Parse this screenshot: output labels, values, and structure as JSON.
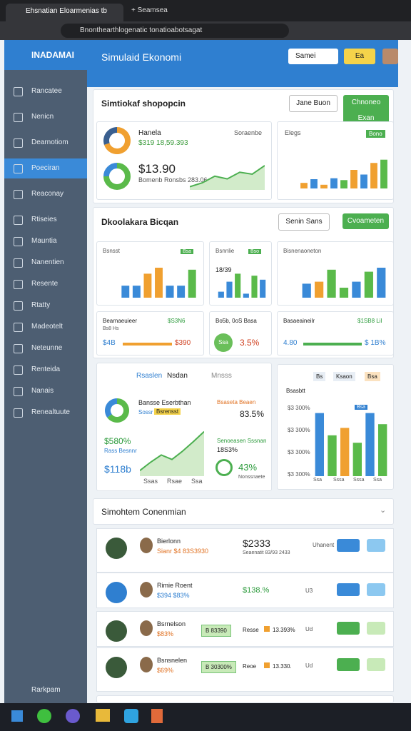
{
  "browser": {
    "tab_title": "Ehsnatian Eloarmenias tb",
    "new_tab": "Seamsea",
    "url": "Bnonthearthlogenatic tonatioabotsagat"
  },
  "sidebar": {
    "brand": "INADAMAI",
    "items": [
      "Rancatee",
      "Nenicn",
      "Dearnotiom",
      "Poeciran",
      "Reaconay",
      "Rtiseies",
      "Mauntia",
      "Nanentien",
      "Resente",
      "Rtatty",
      "Madeotelt",
      "Neteunne",
      "Renteida",
      "Nanais",
      "Renealtuute"
    ],
    "footer": "Rarkpam"
  },
  "header": {
    "title": "Simulaid Ekonomi",
    "select": "Samei",
    "button": "Ea"
  },
  "section1": {
    "title": "Simtiokaf shopopcin",
    "button1": "Jane Buon",
    "button2": "Chnoneo Exan",
    "card1": {
      "label": "Hanela",
      "sub": "Soraenbe",
      "value": "$319 18,59.393",
      "big": "$13.90",
      "note": "Bomenb Ronsbs 283.06",
      "donut": {
        "values": [
          70,
          30
        ],
        "colors": [
          "#f0a030",
          "#3a5f8f"
        ]
      },
      "ring": {
        "values": [
          75,
          25
        ],
        "colors": [
          "#5aba4a",
          "#3a8ad8"
        ]
      },
      "line": {
        "ylim": [
          0,
          100
        ],
        "values": [
          8,
          18,
          35,
          28,
          45,
          40,
          62
        ]
      }
    },
    "card2": {
      "title": "Elegs",
      "badge": "Bono",
      "chart": {
        "ylim": [
          0,
          100
        ],
        "values": [
          12,
          20,
          8,
          22,
          18,
          40,
          30,
          55,
          62
        ],
        "colors": [
          "#f0a030",
          "#3a8ad8",
          "#f0a030",
          "#3a8ad8",
          "#5aba4a",
          "#f0a030",
          "#3a8ad8",
          "#f0a030",
          "#5aba4a"
        ]
      }
    }
  },
  "section2": {
    "title": "Dkoolakara Bicqan",
    "button1": "Senin Sans",
    "button2": "Cvoameten",
    "cards": [
      {
        "title": "Bsnsst",
        "badge": "Bsa",
        "chart": {
          "ylim": [
            0,
            100
          ],
          "values": [
            30,
            30,
            60,
            75,
            30,
            30,
            70
          ],
          "colors": [
            "#3a8ad8",
            "#3a8ad8",
            "#f0a030",
            "#f0a030",
            "#3a8ad8",
            "#3a8ad8",
            "#5aba4a"
          ]
        }
      },
      {
        "title": "Bsnnlie",
        "sub": "18/39",
        "badge": "Bso",
        "chart": {
          "ylim": [
            0,
            100
          ],
          "values": [
            15,
            40,
            60,
            10,
            55,
            45
          ],
          "colors": [
            "#3a8ad8",
            "#3a8ad8",
            "#5aba4a",
            "#3a8ad8",
            "#5aba4a",
            "#3a8ad8"
          ]
        }
      },
      {
        "title": "Bisnenaoneton",
        "chart": {
          "ylim": [
            0,
            100
          ],
          "values": [
            35,
            40,
            70,
            25,
            40,
            65,
            75
          ],
          "colors": [
            "#3a8ad8",
            "#f0a030",
            "#5aba4a",
            "#5aba4a",
            "#3a8ad8",
            "#5aba4a",
            "#3a8ad8"
          ]
        }
      }
    ],
    "small": [
      {
        "title": "Bearnaeuieer",
        "value": "$S3N6",
        "sub": "Bs8 Hs",
        "left": "$4B",
        "right": "$390"
      },
      {
        "title": "Bo5b, 0oS Basa",
        "badge": "Ssa",
        "value": "3.5%"
      },
      {
        "title": "Basaeaineilr",
        "value": "$1SB8 Lil",
        "left": "4.80",
        "right": "$ 1B%"
      }
    ]
  },
  "section3": {
    "tab1": "Rsaslen",
    "tab2": "Nsdan",
    "tab3": "Mnsss",
    "left": {
      "title": "Bansse Eserbthan",
      "title_sub": "Sossr",
      "badge": "Bsrensst",
      "pie": {
        "values": [
          65,
          35
        ],
        "colors": [
          "#5aba4a",
          "#3a8ad8"
        ]
      },
      "stat1": "$580%",
      "stat1_sub": "Rass Besnnr",
      "stat2": "$118b",
      "ax1": "Ssas",
      "ax2": "Rsae",
      "ax3": "Ssa",
      "right1_title": "Bsaseta Beaen",
      "right1_value": "83.5%",
      "right2_title": "Senoeasen Sssnan",
      "right2_sub": "18S3%",
      "right2_value": "43%",
      "right2_note": "Nonssnaete",
      "line": {
        "ylim": [
          0,
          100
        ],
        "values": [
          10,
          25,
          38,
          30,
          45,
          62,
          80
        ]
      }
    },
    "right": {
      "tab1": "Bs",
      "tab2": "Ksaon",
      "tab3": "Bsa",
      "title": "Bsasbtt",
      "badge": "Bsa",
      "yticks": [
        "$3 300%",
        "$3 300%",
        "$3 300%",
        "$3 300%"
      ],
      "xticks": [
        "Ssa",
        "Sssa",
        "Sssa",
        "Ssa"
      ],
      "chart": {
        "ylim": [
          0,
          100
        ],
        "values": [
          85,
          55,
          65,
          45,
          85,
          70
        ],
        "colors": [
          "#3a8ad8",
          "#5aba4a",
          "#f0a030",
          "#5aba4a",
          "#3a8ad8",
          "#5aba4a"
        ]
      }
    }
  },
  "section4": {
    "title": "Simohtem Conenmian",
    "rows": [
      {
        "name": "Bierlonn",
        "sub": "Sianr $4 83S3930",
        "amount": "$2333",
        "amount_sub": "Seaenatit 83/93 2433",
        "tag": "Uhanent"
      },
      {
        "name": "Rimie Roent",
        "sub": "$394 $83%",
        "amount": "$138.%",
        "tag": "U3"
      },
      {
        "name": "Bsrnelson",
        "sub": "$83%",
        "badge": "B 83390",
        "label": "Resse",
        "amount": "13.393%",
        "tag": "Ud"
      },
      {
        "name": "Bsnsnelen",
        "sub": "$69%",
        "badge": "B 30300%",
        "label": "Reoe",
        "amount": "13.330.",
        "tag": "Ud"
      }
    ]
  }
}
